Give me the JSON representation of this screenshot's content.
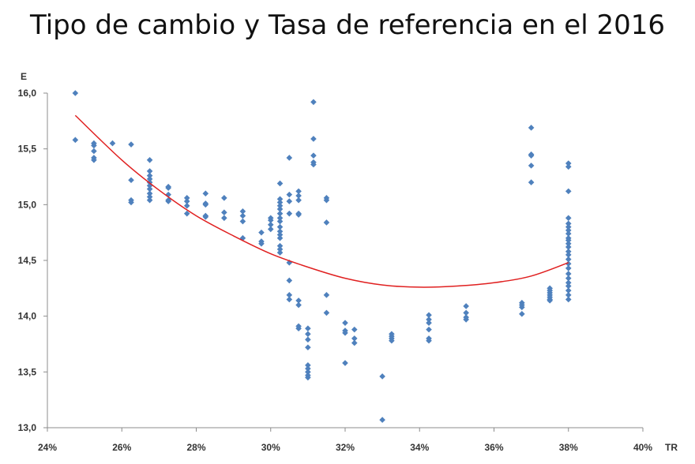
{
  "chart_data": {
    "type": "scatter",
    "title": "Tipo de cambio y Tasa de referencia en el 2016",
    "xlabel": "TR",
    "ylabel": "E",
    "xlim": [
      24,
      40
    ],
    "ylim": [
      13.0,
      16.0
    ],
    "x_ticks": [
      "24%",
      "26%",
      "28%",
      "30%",
      "32%",
      "34%",
      "36%",
      "38%",
      "40%"
    ],
    "y_ticks": [
      "13,0",
      "13,5",
      "14,0",
      "14,5",
      "15,0",
      "15,5",
      "16,0"
    ],
    "grid": false,
    "legend": "none",
    "marker_color": "#4f81bd",
    "trend_color": "#e02020",
    "trendline": {
      "type": "polynomial-2",
      "points": [
        [
          24.75,
          15.8
        ],
        [
          26,
          15.4
        ],
        [
          27,
          15.13
        ],
        [
          28,
          14.9
        ],
        [
          29,
          14.72
        ],
        [
          30,
          14.56
        ],
        [
          31,
          14.44
        ],
        [
          32,
          14.34
        ],
        [
          33,
          14.28
        ],
        [
          34,
          14.26
        ],
        [
          35,
          14.27
        ],
        [
          36,
          14.3
        ],
        [
          37,
          14.36
        ],
        [
          38,
          14.48
        ]
      ]
    },
    "series": [
      {
        "points": [
          [
            24.75,
            16.0
          ],
          [
            24.75,
            15.58
          ],
          [
            25.25,
            15.55
          ],
          [
            25.25,
            15.53
          ],
          [
            25.25,
            15.48
          ],
          [
            25.25,
            15.42
          ],
          [
            25.25,
            15.4
          ],
          [
            25.75,
            15.55
          ],
          [
            26.25,
            15.54
          ],
          [
            26.25,
            15.22
          ],
          [
            26.25,
            15.04
          ],
          [
            26.25,
            15.02
          ],
          [
            26.75,
            15.4
          ],
          [
            26.75,
            15.3
          ],
          [
            26.75,
            15.26
          ],
          [
            26.75,
            15.23
          ],
          [
            26.75,
            15.2
          ],
          [
            26.75,
            15.17
          ],
          [
            26.75,
            15.14
          ],
          [
            26.75,
            15.1
          ],
          [
            26.75,
            15.07
          ],
          [
            26.75,
            15.04
          ],
          [
            27.25,
            15.16
          ],
          [
            27.25,
            15.15
          ],
          [
            27.25,
            15.09
          ],
          [
            27.25,
            15.04
          ],
          [
            27.25,
            15.03
          ],
          [
            27.75,
            15.06
          ],
          [
            27.75,
            15.03
          ],
          [
            27.75,
            14.99
          ],
          [
            27.75,
            14.92
          ],
          [
            28.25,
            15.1
          ],
          [
            28.25,
            15.01
          ],
          [
            28.25,
            15.0
          ],
          [
            28.25,
            14.9
          ],
          [
            28.25,
            14.89
          ],
          [
            28.75,
            15.06
          ],
          [
            28.75,
            14.93
          ],
          [
            28.75,
            14.88
          ],
          [
            29.25,
            14.94
          ],
          [
            29.25,
            14.9
          ],
          [
            29.25,
            14.85
          ],
          [
            29.25,
            14.7
          ],
          [
            29.75,
            14.75
          ],
          [
            29.75,
            14.67
          ],
          [
            29.75,
            14.65
          ],
          [
            30.0,
            14.88
          ],
          [
            30.0,
            14.86
          ],
          [
            30.0,
            14.82
          ],
          [
            30.0,
            14.78
          ],
          [
            30.25,
            15.19
          ],
          [
            30.25,
            15.05
          ],
          [
            30.25,
            15.02
          ],
          [
            30.25,
            14.99
          ],
          [
            30.25,
            14.96
          ],
          [
            30.25,
            14.92
          ],
          [
            30.25,
            14.88
          ],
          [
            30.25,
            14.85
          ],
          [
            30.25,
            14.8
          ],
          [
            30.25,
            14.76
          ],
          [
            30.25,
            14.73
          ],
          [
            30.25,
            14.7
          ],
          [
            30.25,
            14.63
          ],
          [
            30.25,
            14.6
          ],
          [
            30.25,
            14.57
          ],
          [
            30.5,
            15.42
          ],
          [
            30.5,
            15.09
          ],
          [
            30.5,
            15.03
          ],
          [
            30.5,
            14.92
          ],
          [
            30.5,
            14.48
          ],
          [
            30.5,
            14.32
          ],
          [
            30.5,
            14.19
          ],
          [
            30.5,
            14.15
          ],
          [
            30.75,
            15.12
          ],
          [
            30.75,
            15.08
          ],
          [
            30.75,
            15.04
          ],
          [
            30.75,
            14.92
          ],
          [
            30.75,
            14.91
          ],
          [
            30.75,
            14.14
          ],
          [
            30.75,
            14.1
          ],
          [
            30.75,
            13.91
          ],
          [
            30.75,
            13.89
          ],
          [
            31.0,
            13.89
          ],
          [
            31.0,
            13.84
          ],
          [
            31.0,
            13.79
          ],
          [
            31.0,
            13.72
          ],
          [
            31.0,
            13.56
          ],
          [
            31.0,
            13.53
          ],
          [
            31.0,
            13.5
          ],
          [
            31.0,
            13.47
          ],
          [
            31.0,
            13.45
          ],
          [
            31.15,
            15.92
          ],
          [
            31.15,
            15.59
          ],
          [
            31.15,
            15.44
          ],
          [
            31.15,
            15.38
          ],
          [
            31.15,
            15.36
          ],
          [
            31.5,
            15.06
          ],
          [
            31.5,
            15.04
          ],
          [
            31.5,
            14.84
          ],
          [
            31.5,
            14.19
          ],
          [
            31.5,
            14.03
          ],
          [
            32.0,
            13.94
          ],
          [
            32.0,
            13.87
          ],
          [
            32.0,
            13.85
          ],
          [
            32.0,
            13.58
          ],
          [
            32.25,
            13.88
          ],
          [
            32.25,
            13.8
          ],
          [
            32.25,
            13.76
          ],
          [
            33.0,
            13.46
          ],
          [
            33.0,
            13.07
          ],
          [
            33.25,
            13.84
          ],
          [
            33.25,
            13.82
          ],
          [
            33.25,
            13.8
          ],
          [
            33.25,
            13.78
          ],
          [
            34.25,
            14.01
          ],
          [
            34.25,
            13.97
          ],
          [
            34.25,
            13.94
          ],
          [
            34.25,
            13.88
          ],
          [
            34.25,
            13.8
          ],
          [
            34.25,
            13.78
          ],
          [
            35.25,
            14.09
          ],
          [
            35.25,
            14.03
          ],
          [
            35.25,
            13.99
          ],
          [
            35.25,
            13.97
          ],
          [
            36.75,
            14.12
          ],
          [
            36.75,
            14.1
          ],
          [
            36.75,
            14.08
          ],
          [
            36.75,
            14.02
          ],
          [
            37.0,
            15.69
          ],
          [
            37.0,
            15.45
          ],
          [
            37.0,
            15.44
          ],
          [
            37.0,
            15.35
          ],
          [
            37.0,
            15.2
          ],
          [
            37.5,
            14.25
          ],
          [
            37.5,
            14.23
          ],
          [
            37.5,
            14.21
          ],
          [
            37.5,
            14.19
          ],
          [
            37.5,
            14.17
          ],
          [
            37.5,
            14.15
          ],
          [
            37.5,
            14.14
          ],
          [
            38.0,
            15.37
          ],
          [
            38.0,
            15.34
          ],
          [
            38.0,
            15.12
          ],
          [
            38.0,
            14.88
          ],
          [
            38.0,
            14.83
          ],
          [
            38.0,
            14.8
          ],
          [
            38.0,
            14.77
          ],
          [
            38.0,
            14.74
          ],
          [
            38.0,
            14.7
          ],
          [
            38.0,
            14.68
          ],
          [
            38.0,
            14.65
          ],
          [
            38.0,
            14.62
          ],
          [
            38.0,
            14.58
          ],
          [
            38.0,
            14.55
          ],
          [
            38.0,
            14.51
          ],
          [
            38.0,
            14.47
          ],
          [
            38.0,
            14.43
          ],
          [
            38.0,
            14.38
          ],
          [
            38.0,
            14.34
          ],
          [
            38.0,
            14.3
          ],
          [
            38.0,
            14.27
          ],
          [
            38.0,
            14.23
          ],
          [
            38.0,
            14.19
          ],
          [
            38.0,
            14.15
          ]
        ]
      }
    ]
  }
}
